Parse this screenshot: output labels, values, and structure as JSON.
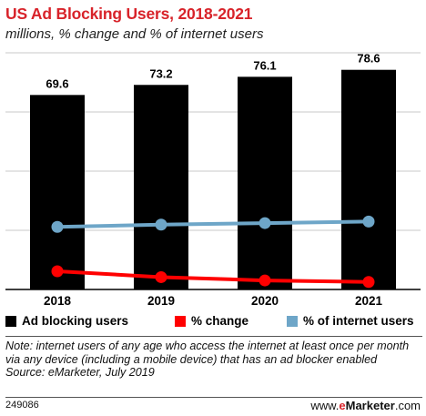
{
  "header": {
    "title": "US Ad Blocking Users, 2018-2021",
    "subtitle": "millions, % change and % of internet users"
  },
  "legend": {
    "items": [
      {
        "label": "Ad blocking users",
        "color": "#000000"
      },
      {
        "label": "% change",
        "color": "#ff0000"
      },
      {
        "label": "% of internet users",
        "color": "#6ea6c8"
      }
    ]
  },
  "chart_data": {
    "type": "bar",
    "categories": [
      "2018",
      "2019",
      "2020",
      "2021"
    ],
    "series": [
      {
        "name": "Ad blocking users",
        "type": "bar",
        "values": [
          69.6,
          73.2,
          76.1,
          78.6
        ],
        "labels": [
          "69.6",
          "73.2",
          "76.1",
          "78.6"
        ],
        "color": "#000000"
      },
      {
        "name": "% change",
        "type": "line",
        "values": [
          7.5,
          5.2,
          3.9,
          3.3
        ],
        "labels": [
          "7.5%",
          "5.2%",
          "3.9%",
          "3.3%"
        ],
        "color": "#ff0000"
      },
      {
        "name": "% of internet users",
        "type": "line",
        "values": [
          24.9,
          25.8,
          26.4,
          27.0
        ],
        "labels": [
          "24.9%",
          "25.8%",
          "26.4%",
          "27.0%"
        ],
        "color": "#6ea6c8"
      }
    ],
    "grid": true,
    "legend_position": "bottom"
  },
  "notes": {
    "note": "Note: internet users of any age who access the internet at least once per month via any device (including a mobile device) that has an ad blocker enabled",
    "source": "Source: eMarketer, July 2019"
  },
  "footer": {
    "id": "249086",
    "brand_prefix": "www.",
    "brand_e": "e",
    "brand_marketer": "Marketer",
    "brand_suffix": ".com"
  }
}
